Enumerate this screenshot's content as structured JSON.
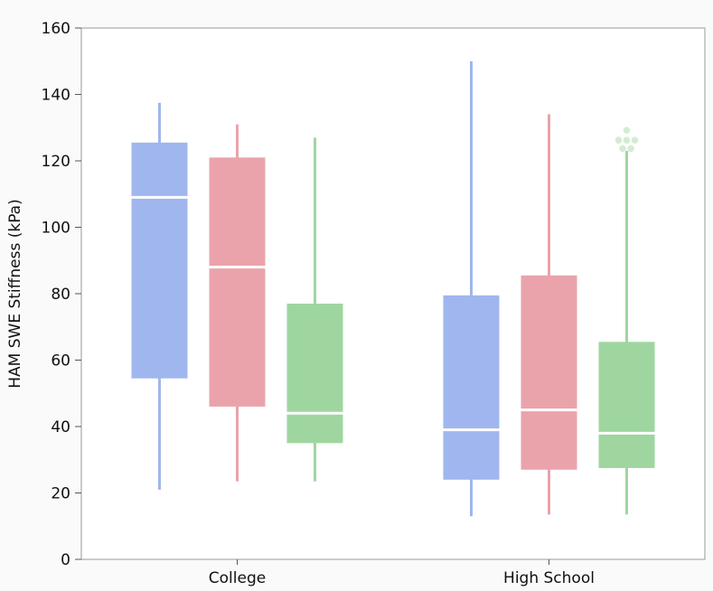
{
  "chart_data": {
    "type": "box",
    "title": "",
    "xlabel": "",
    "ylabel": "HAM SWE Stiffness (kPa)",
    "ylim": [
      0,
      160
    ],
    "yticks": [
      0,
      20,
      40,
      60,
      80,
      100,
      120,
      140,
      160
    ],
    "grid": false,
    "legend": "none",
    "categories": [
      "College",
      "High School"
    ],
    "series": [
      {
        "color": "#a0b6ee",
        "boxes": [
          {
            "min": 21,
            "q1": 54.5,
            "median": 109,
            "q3": 125.5,
            "max": 137.5,
            "outliers": []
          },
          {
            "min": 13,
            "q1": 24,
            "median": 39,
            "q3": 79.5,
            "max": 150,
            "outliers": []
          }
        ]
      },
      {
        "color": "#eaa3ab",
        "boxes": [
          {
            "min": 23.5,
            "q1": 46,
            "median": 88,
            "q3": 121,
            "max": 131,
            "outliers": []
          },
          {
            "min": 13.5,
            "q1": 27,
            "median": 45,
            "q3": 85.5,
            "max": 134,
            "outliers": []
          }
        ]
      },
      {
        "color": "#9fd6a0",
        "boxes": [
          {
            "min": 23.5,
            "q1": 35,
            "median": 44,
            "q3": 77,
            "max": 127,
            "outliers": []
          },
          {
            "min": 13.5,
            "q1": 27.5,
            "median": 38,
            "q3": 65.5,
            "max": 123,
            "outliers": [
              123.7,
              123.7,
              126.2,
              126.2,
              126.2,
              129.2
            ]
          }
        ]
      }
    ]
  }
}
